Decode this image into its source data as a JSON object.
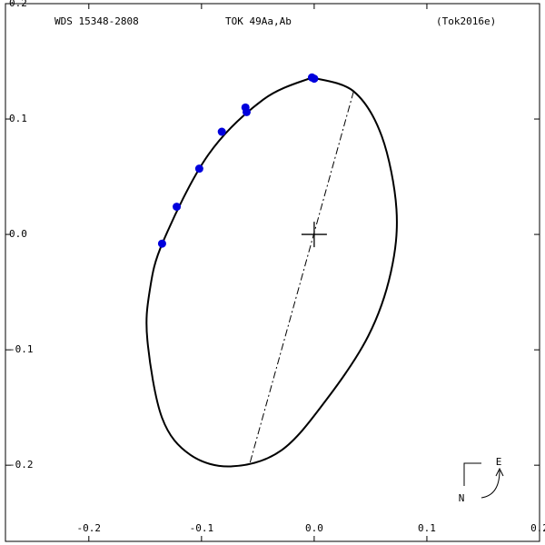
{
  "chart_data": {
    "type": "scatter",
    "title": "WDS 15348-2808",
    "subtitle": "TOK  49Aa,Ab",
    "reference": "(Tok2016e)",
    "compass": {
      "east": "E",
      "north": "N"
    },
    "xlim": [
      -0.274,
      0.2
    ],
    "ylim": [
      -0.266,
      0.2
    ],
    "xticks": [
      -0.2,
      -0.1,
      {
        "value": 0,
        "label": "0.0"
      },
      0.1,
      0.2
    ],
    "yticks": [
      0.2,
      0.1,
      {
        "value": 0,
        "label": "0.0"
      },
      -0.1,
      -0.2
    ],
    "points": {
      "color": "#0000dd",
      "x": [
        -0.002,
        0.0,
        -0.061,
        -0.06,
        -0.082,
        -0.102,
        -0.122,
        -0.135
      ],
      "y": [
        0.136,
        0.135,
        0.11,
        0.106,
        0.089,
        0.057,
        0.024,
        -0.008
      ]
    },
    "orbit": {
      "color": "#000000",
      "x": [
        -0.002,
        0.035,
        0.06,
        0.073,
        0.068,
        0.048,
        0.011,
        -0.029,
        -0.073,
        -0.11,
        -0.135,
        -0.148,
        -0.146,
        -0.134,
        -0.094,
        -0.045,
        -0.002
      ],
      "y": [
        0.136,
        0.124,
        0.085,
        0.022,
        -0.033,
        -0.088,
        -0.143,
        -0.187,
        -0.201,
        -0.191,
        -0.159,
        -0.092,
        -0.049,
        -0.006,
        0.069,
        0.117,
        0.136
      ]
    },
    "node_line": {
      "x": [
        0.035,
        -0.057
      ],
      "y": [
        0.124,
        -0.198
      ]
    }
  }
}
